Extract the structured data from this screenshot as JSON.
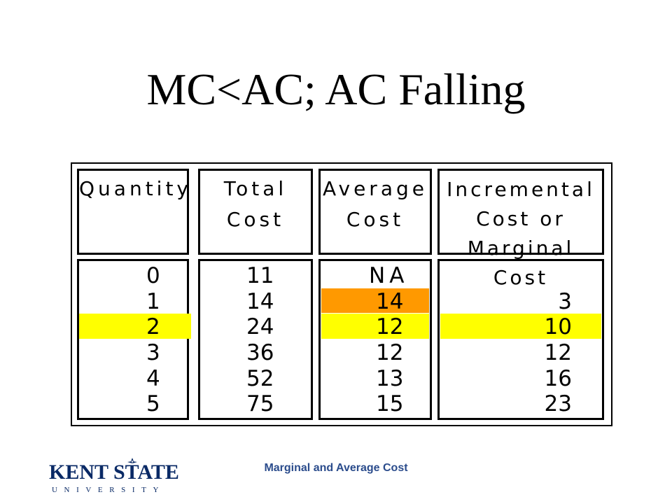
{
  "title": "MC<AC; AC Falling",
  "table": {
    "headers": [
      [
        "Quantity"
      ],
      [
        "Total",
        "Cost"
      ],
      [
        "Average",
        "Cost"
      ],
      [
        "Incremental",
        "Cost or",
        "Marginal Cost"
      ]
    ],
    "rows": [
      {
        "quantity": "0",
        "total_cost": "11",
        "average_cost": "NA",
        "marginal_cost": ""
      },
      {
        "quantity": "1",
        "total_cost": "14",
        "average_cost": "14",
        "marginal_cost": "3"
      },
      {
        "quantity": "2",
        "total_cost": "24",
        "average_cost": "12",
        "marginal_cost": "10"
      },
      {
        "quantity": "3",
        "total_cost": "36",
        "average_cost": "12",
        "marginal_cost": "12"
      },
      {
        "quantity": "4",
        "total_cost": "52",
        "average_cost": "13",
        "marginal_cost": "16"
      },
      {
        "quantity": "5",
        "total_cost": "75",
        "average_cost": "15",
        "marginal_cost": "23"
      }
    ],
    "highlight_colors": {
      "row_highlight": "#ffff00",
      "cell_highlight": "#ff9900"
    }
  },
  "footer": {
    "caption": "Marginal and Average Cost"
  },
  "logo": {
    "name": "KENT STATE",
    "subtitle": "UNIVERSITY",
    "color": "#0a2a66"
  }
}
